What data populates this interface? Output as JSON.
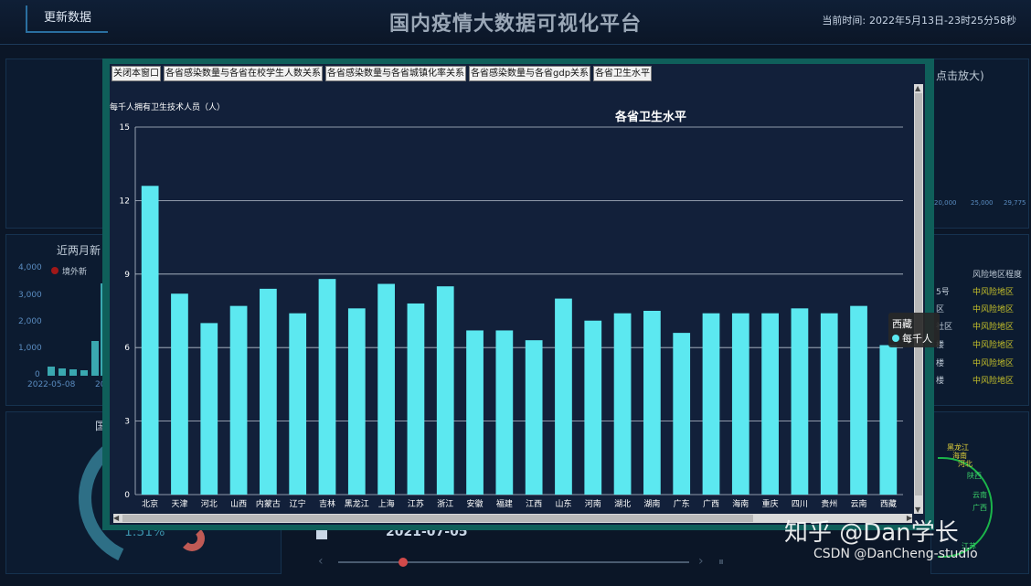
{
  "header": {
    "refresh_label": "更新数据",
    "title": "国内疫情大数据可视化平台",
    "time_label": "当前时间:",
    "time_value": "2022年5月13日-23时25分58秒"
  },
  "background": {
    "panel_titles": [
      "近两月新"
    ],
    "left_axis_ticks": [
      "4,000",
      "3,000",
      "2,000",
      "1,000",
      "0"
    ],
    "left_dates": [
      "2022-05-08",
      "20"
    ],
    "legend_label": "境外新",
    "right_top_fragment": "点击放大)",
    "right_axis_ticks": [
      "20,000",
      "25,000",
      "29,775"
    ],
    "risk_header": "风险地区程度",
    "risk_left": [
      "5号",
      "区",
      "社区",
      "楼",
      "楼",
      "楼"
    ],
    "risk_items": [
      "中风险地区",
      "中风险地区",
      "中风险地区",
      "中风险地区",
      "中风险地区",
      "中风险地区"
    ],
    "bottom_left_title": "国",
    "gauge_value": "1.51%",
    "timeline_date": "2021-07-05",
    "pie_labels": [
      "黑龙江",
      "海南",
      "河北",
      "陕西",
      "云南",
      "广西",
      "江苏"
    ]
  },
  "modal": {
    "buttons": [
      "关闭本窗口",
      "各省感染数量与各省在校学生人数关系",
      "各省感染数量与各省城镇化率关系",
      "各省感染数量与各省gdp关系",
      "各省卫生水平"
    ]
  },
  "tooltip": {
    "title": "西藏",
    "series": "每千人"
  },
  "watermark": {
    "zhihu": "知乎 @Dan学长",
    "csdn": "CSDN @DanCheng-studio"
  },
  "colors": {
    "bar": "#5ce8f0",
    "modal_border": "#0f5f5a",
    "chart_bg": "#12203a"
  },
  "chart_data": {
    "type": "bar",
    "title": "各省卫生水平",
    "ylabel": "每千人拥有卫生技术人员（人）",
    "xlabel": "",
    "ylim": [
      0,
      15
    ],
    "yticks": [
      0,
      3,
      6,
      9,
      12,
      15
    ],
    "grid": true,
    "categories": [
      "北京",
      "天津",
      "河北",
      "山西",
      "内蒙古",
      "辽宁",
      "吉林",
      "黑龙江",
      "上海",
      "江苏",
      "浙江",
      "安徽",
      "福建",
      "江西",
      "山东",
      "河南",
      "湖北",
      "湖南",
      "广东",
      "广西",
      "海南",
      "重庆",
      "四川",
      "贵州",
      "云南",
      "西藏"
    ],
    "values": [
      12.6,
      8.2,
      7.0,
      7.7,
      8.4,
      7.4,
      8.8,
      7.6,
      8.6,
      7.8,
      8.5,
      6.7,
      6.7,
      6.3,
      8.0,
      7.1,
      7.4,
      7.5,
      6.6,
      7.4,
      7.4,
      7.4,
      7.6,
      7.4,
      7.7,
      6.1
    ]
  }
}
